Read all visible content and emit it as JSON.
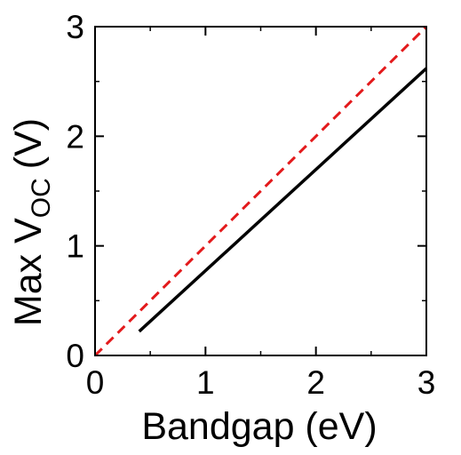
{
  "chart_data": {
    "type": "line",
    "title": "",
    "xlabel": "Bandgap (eV)",
    "ylabel": {
      "main": "Max V",
      "subscript": "OC",
      "unit": "(V)"
    },
    "xlim": [
      0,
      3
    ],
    "ylim": [
      0,
      3
    ],
    "xticks": [
      0,
      1,
      2,
      3
    ],
    "yticks": [
      0,
      1,
      2,
      3
    ],
    "grid": false,
    "legend": "none",
    "series": [
      {
        "style": "solid",
        "color": "#000000",
        "x": [
          0.4,
          3.0
        ],
        "y": [
          0.22,
          2.62
        ]
      },
      {
        "style": "dashed",
        "color": "#e31a1c",
        "x": [
          0.0,
          3.0
        ],
        "y": [
          0.0,
          3.0
        ]
      }
    ]
  }
}
